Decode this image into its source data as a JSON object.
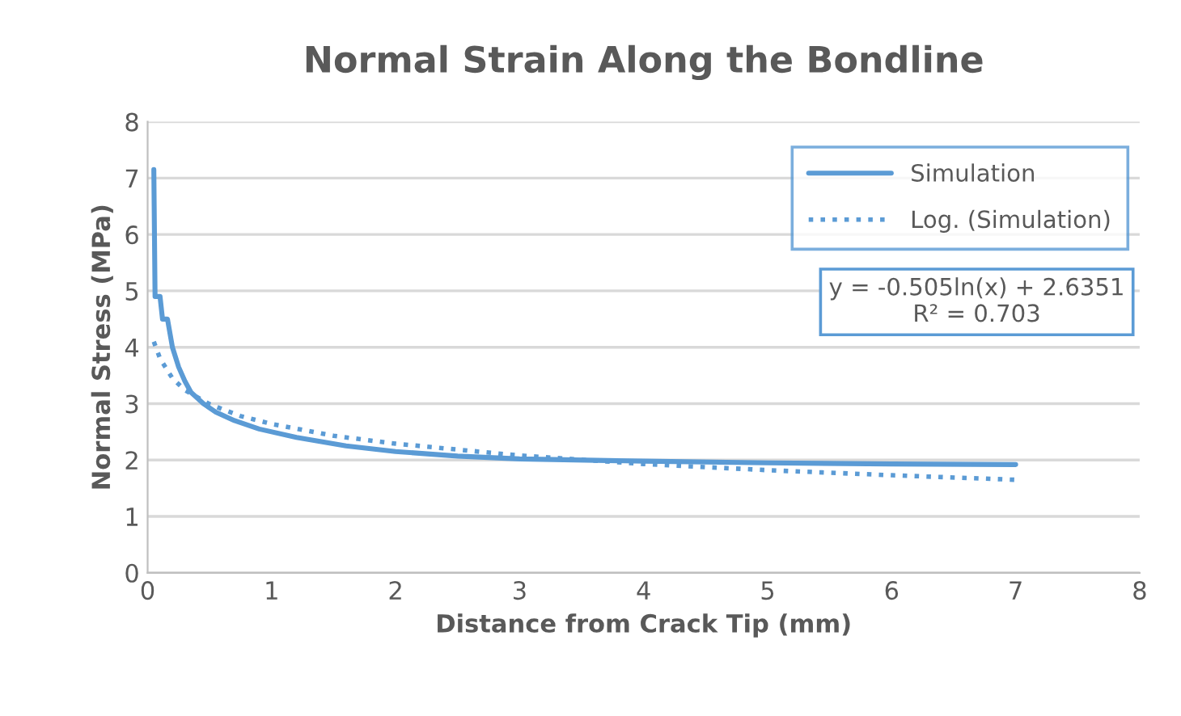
{
  "chart_data": {
    "type": "line",
    "title": "Normal Strain Along the Bondline",
    "xlabel": "Distance from Crack Tip (mm)",
    "ylabel": "Normal Stress (MPa)",
    "xlim": [
      0,
      8
    ],
    "xticks": [
      0,
      1,
      2,
      3,
      4,
      5,
      6,
      7,
      8
    ],
    "ylim": [
      0,
      8
    ],
    "yticks": [
      0,
      1,
      2,
      3,
      4,
      5,
      6,
      7,
      8
    ],
    "grid": "y",
    "legend": "top right",
    "annotations": [
      "y = -0.505ln(x) + 2.6351\nR² = 0.703"
    ],
    "series": [
      {
        "name": "Simulation",
        "color": "#5b9bd5",
        "line_style": "solid",
        "x": [
          0.05,
          0.06,
          0.1,
          0.12,
          0.16,
          0.2,
          0.25,
          0.3,
          0.35,
          0.45,
          0.55,
          0.7,
          0.9,
          1.2,
          1.6,
          2,
          2.5,
          3,
          4,
          5,
          6,
          7
        ],
        "values": [
          7.15,
          4.9,
          4.9,
          4.5,
          4.5,
          4.0,
          3.65,
          3.4,
          3.2,
          3.0,
          2.85,
          2.7,
          2.55,
          2.4,
          2.25,
          2.15,
          2.07,
          2.02,
          1.98,
          1.95,
          1.93,
          1.92
        ]
      },
      {
        "name": "Log. (Simulation)",
        "color": "#5b9bd5",
        "line_style": "dotted",
        "x": [
          0.05,
          0.1,
          0.2,
          0.3,
          0.5,
          0.75,
          1,
          1.5,
          2,
          3,
          4,
          5,
          6,
          7
        ],
        "values": [
          4.1,
          3.8,
          3.45,
          3.24,
          2.99,
          2.78,
          2.64,
          2.43,
          2.29,
          2.08,
          1.93,
          1.82,
          1.73,
          1.65
        ]
      }
    ]
  }
}
